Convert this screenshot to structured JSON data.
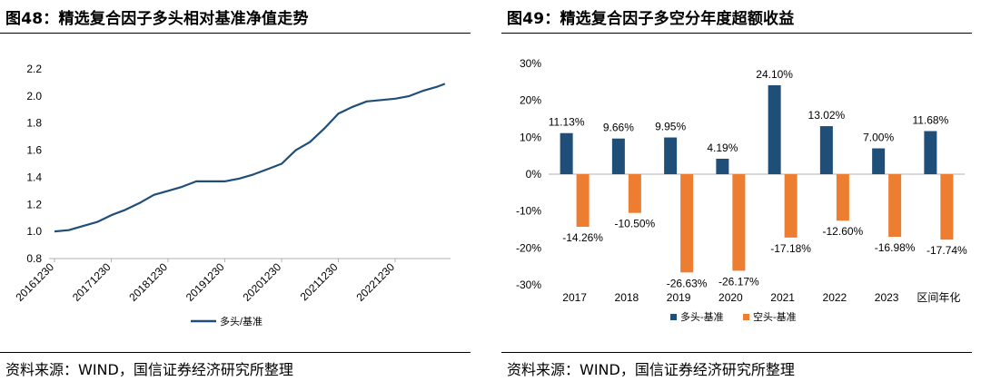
{
  "left_panel": {
    "title": "图48：精选复合因子多头相对基准净值走势",
    "source": "资料来源：WIND，国信证券经济研究所整理"
  },
  "right_panel": {
    "title": "图49：精选复合因子多空分年度超额收益",
    "source": "资料来源：WIND，国信证券经济研究所整理"
  },
  "chart_data": [
    {
      "type": "line",
      "title": "",
      "xlabel": "",
      "ylabel": "",
      "ylim": [
        0.8,
        2.2
      ],
      "yticks": [
        "2.2",
        "2.0",
        "1.8",
        "1.6",
        "1.4",
        "1.2",
        "1.0",
        "0.8"
      ],
      "xticks": [
        "20161230",
        "20171230",
        "20181230",
        "20191230",
        "20201230",
        "20211230",
        "20221230"
      ],
      "legend_position": "bottom",
      "grid": false,
      "series": [
        {
          "name": "多头/基准",
          "color": "#1f4e79",
          "x": [
            "20161230",
            "20170331",
            "20170630",
            "20170930",
            "20171230",
            "20180331",
            "20180630",
            "20180930",
            "20181230",
            "20190331",
            "20190630",
            "20190930",
            "20191230",
            "20200331",
            "20200630",
            "20200930",
            "20201230",
            "20210331",
            "20210630",
            "20210930",
            "20211230",
            "20220331",
            "20220630",
            "20220930",
            "20221230",
            "20230331",
            "20230630",
            "20230930",
            "20231115"
          ],
          "y": [
            1.0,
            1.01,
            1.04,
            1.07,
            1.12,
            1.16,
            1.21,
            1.27,
            1.3,
            1.33,
            1.37,
            1.37,
            1.37,
            1.39,
            1.42,
            1.46,
            1.5,
            1.6,
            1.66,
            1.76,
            1.87,
            1.92,
            1.96,
            1.97,
            1.98,
            2.0,
            2.04,
            2.07,
            2.09
          ]
        }
      ]
    },
    {
      "type": "bar",
      "title": "",
      "xlabel": "",
      "ylabel": "",
      "ylim": [
        -30,
        30
      ],
      "yticks": [
        "30%",
        "20%",
        "10%",
        "0%",
        "-10%",
        "-20%",
        "-30%"
      ],
      "categories": [
        "2017",
        "2018",
        "2019",
        "2020",
        "2021",
        "2022",
        "2023",
        "区间年化"
      ],
      "legend_position": "bottom",
      "grid": false,
      "series": [
        {
          "name": "多头-基准",
          "color": "#1f4e79",
          "values": [
            11.13,
            9.66,
            9.95,
            4.19,
            24.1,
            13.02,
            7.0,
            11.68
          ],
          "labels": [
            "11.13%",
            "9.66%",
            "9.95%",
            "4.19%",
            "24.10%",
            "13.02%",
            "7.00%",
            "11.68%"
          ]
        },
        {
          "name": "空头-基准",
          "color": "#ed7d31",
          "values": [
            -14.26,
            -10.5,
            -26.63,
            -26.17,
            -17.18,
            -12.6,
            -16.98,
            -17.74
          ],
          "labels": [
            "-14.26%",
            "-10.50%",
            "-26.63%",
            "-26.17%",
            "-17.18%",
            "-12.60%",
            "-16.98%",
            "-17.74%"
          ]
        }
      ]
    }
  ]
}
